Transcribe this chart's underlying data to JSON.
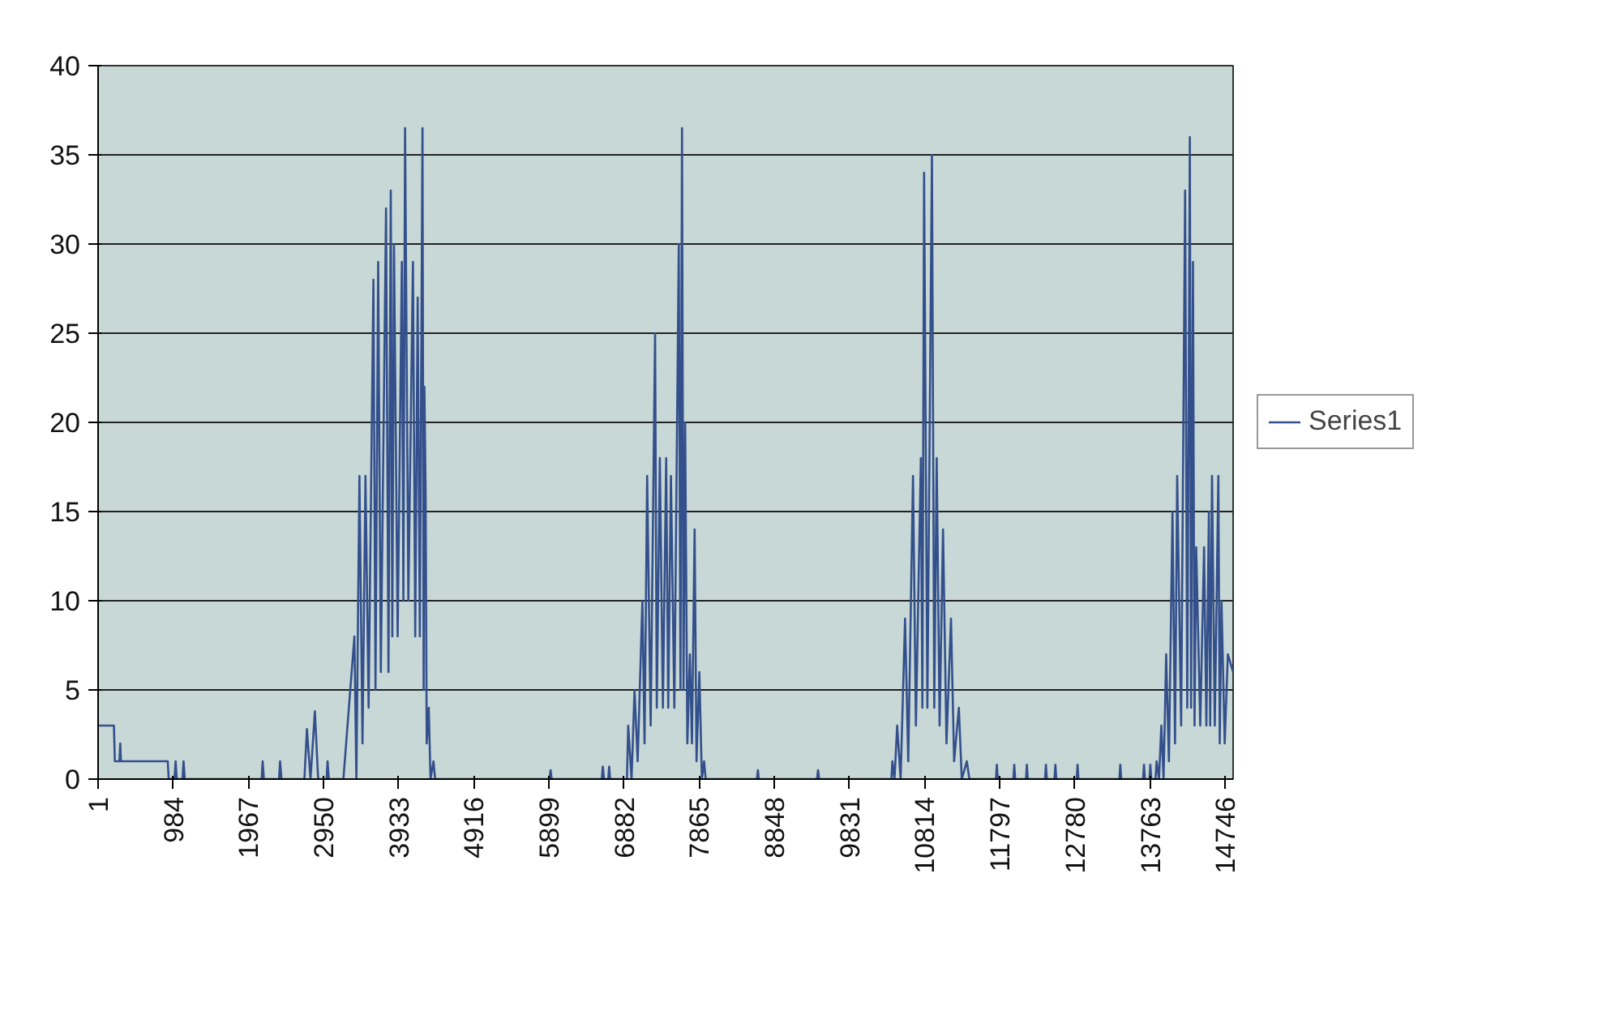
{
  "chart_data": {
    "type": "line",
    "xlim": [
      1,
      14850
    ],
    "ylim": [
      0,
      40
    ],
    "xticks": [
      1,
      984,
      1967,
      2950,
      3933,
      4916,
      5899,
      6882,
      7865,
      8848,
      9831,
      10814,
      11797,
      12780,
      13763,
      14746
    ],
    "yticks": [
      0,
      5,
      10,
      15,
      20,
      25,
      30,
      35,
      40
    ],
    "grid": "y",
    "legend": "right",
    "marker": "none",
    "line_style": "solid",
    "series": [
      {
        "name": "Series1",
        "color": "#34508c",
        "x": [
          1,
          208,
          220,
          280,
          291,
          300,
          912,
          925,
          1000,
          1015,
          1030,
          1105,
          1119,
          1135,
          2140,
          2154,
          2170,
          2368,
          2382,
          2400,
          2700,
          2733,
          2780,
          2837,
          2880,
          2990,
          3003,
          3020,
          3210,
          3354,
          3380,
          3420,
          3460,
          3499,
          3540,
          3603,
          3630,
          3665,
          3700,
          3768,
          3800,
          3830,
          3850,
          3872,
          3920,
          3975,
          3995,
          4017,
          4060,
          4120,
          4150,
          4182,
          4210,
          4245,
          4260,
          4270,
          4286,
          4300,
          4327,
          4350,
          4389,
          4410,
          5905,
          5921,
          5935,
          6590,
          6604,
          6620,
          6675,
          6687,
          6700,
          6920,
          6936,
          6980,
          7019,
          7060,
          7122,
          7150,
          7184,
          7230,
          7288,
          7310,
          7350,
          7390,
          7433,
          7460,
          7495,
          7540,
          7598,
          7620,
          7640,
          7660,
          7681,
          7710,
          7743,
          7770,
          7805,
          7830,
          7867,
          7900,
          7929,
          7950,
          8620,
          8633,
          8645,
          9405,
          9420,
          9435,
          10380,
          10392,
          10420,
          10455,
          10500,
          10558,
          10600,
          10662,
          10700,
          10765,
          10785,
          10807,
          10850,
          10910,
          10940,
          10972,
          11010,
          11055,
          11100,
          11159,
          11200,
          11262,
          11300,
          11366,
          11400,
          11747,
          11759,
          11771,
          11975,
          11987,
          11999,
          12140,
          12152,
          12164,
          12389,
          12401,
          12413,
          12513,
          12525,
          12537,
          12803,
          12815,
          12827,
          13362,
          13374,
          13386,
          13672,
          13684,
          13696,
          13755,
          13767,
          13779,
          13835,
          13849,
          13880,
          13911,
          13940,
          13974,
          14010,
          14057,
          14090,
          14118,
          14170,
          14222,
          14250,
          14284,
          14300,
          14325,
          14345,
          14367,
          14420,
          14470,
          14500,
          14533,
          14550,
          14574,
          14610,
          14657,
          14675,
          14698,
          14740,
          14781,
          14850
        ],
        "values": [
          3,
          3,
          1,
          1,
          2,
          1,
          1,
          0,
          0,
          1,
          0,
          0,
          1,
          0,
          0,
          1,
          0,
          0,
          1,
          0,
          0,
          2.8,
          0,
          3.8,
          0,
          0,
          1,
          0,
          0,
          8,
          0,
          17,
          2,
          17,
          4,
          28,
          5,
          29,
          6,
          32,
          6,
          33,
          8,
          30,
          8,
          29,
          10,
          36.5,
          10,
          29,
          8,
          27,
          8,
          36.5,
          5,
          22,
          16,
          2,
          4,
          0,
          1,
          0,
          0,
          0.5,
          0,
          0,
          0.7,
          0,
          0,
          0.7,
          0,
          0,
          3,
          0,
          5,
          1,
          10,
          2,
          17,
          3,
          25,
          4,
          18,
          4,
          18,
          4,
          17,
          4,
          30,
          5,
          36.5,
          5,
          20,
          2,
          7,
          2,
          14,
          1,
          6,
          0,
          1,
          0,
          0,
          0.5,
          0,
          0,
          0.5,
          0,
          0,
          1,
          0,
          3,
          0,
          9,
          1,
          17,
          3,
          18,
          4,
          34,
          4,
          35,
          4,
          18,
          3,
          14,
          2,
          9,
          1,
          4,
          0,
          1,
          0,
          0,
          0.8,
          0,
          0,
          0.8,
          0,
          0,
          0.8,
          0,
          0,
          0.8,
          0,
          0,
          0.8,
          0,
          0,
          0.8,
          0,
          0,
          0.8,
          0,
          0,
          0.8,
          0,
          0,
          0.8,
          0,
          0,
          1,
          0,
          3,
          0,
          7,
          1,
          15,
          2,
          17,
          3,
          33,
          4,
          36,
          4,
          29,
          3,
          13,
          3,
          13,
          3,
          15,
          3,
          17,
          3,
          17,
          2,
          10,
          2,
          7,
          6
        ]
      }
    ]
  }
}
